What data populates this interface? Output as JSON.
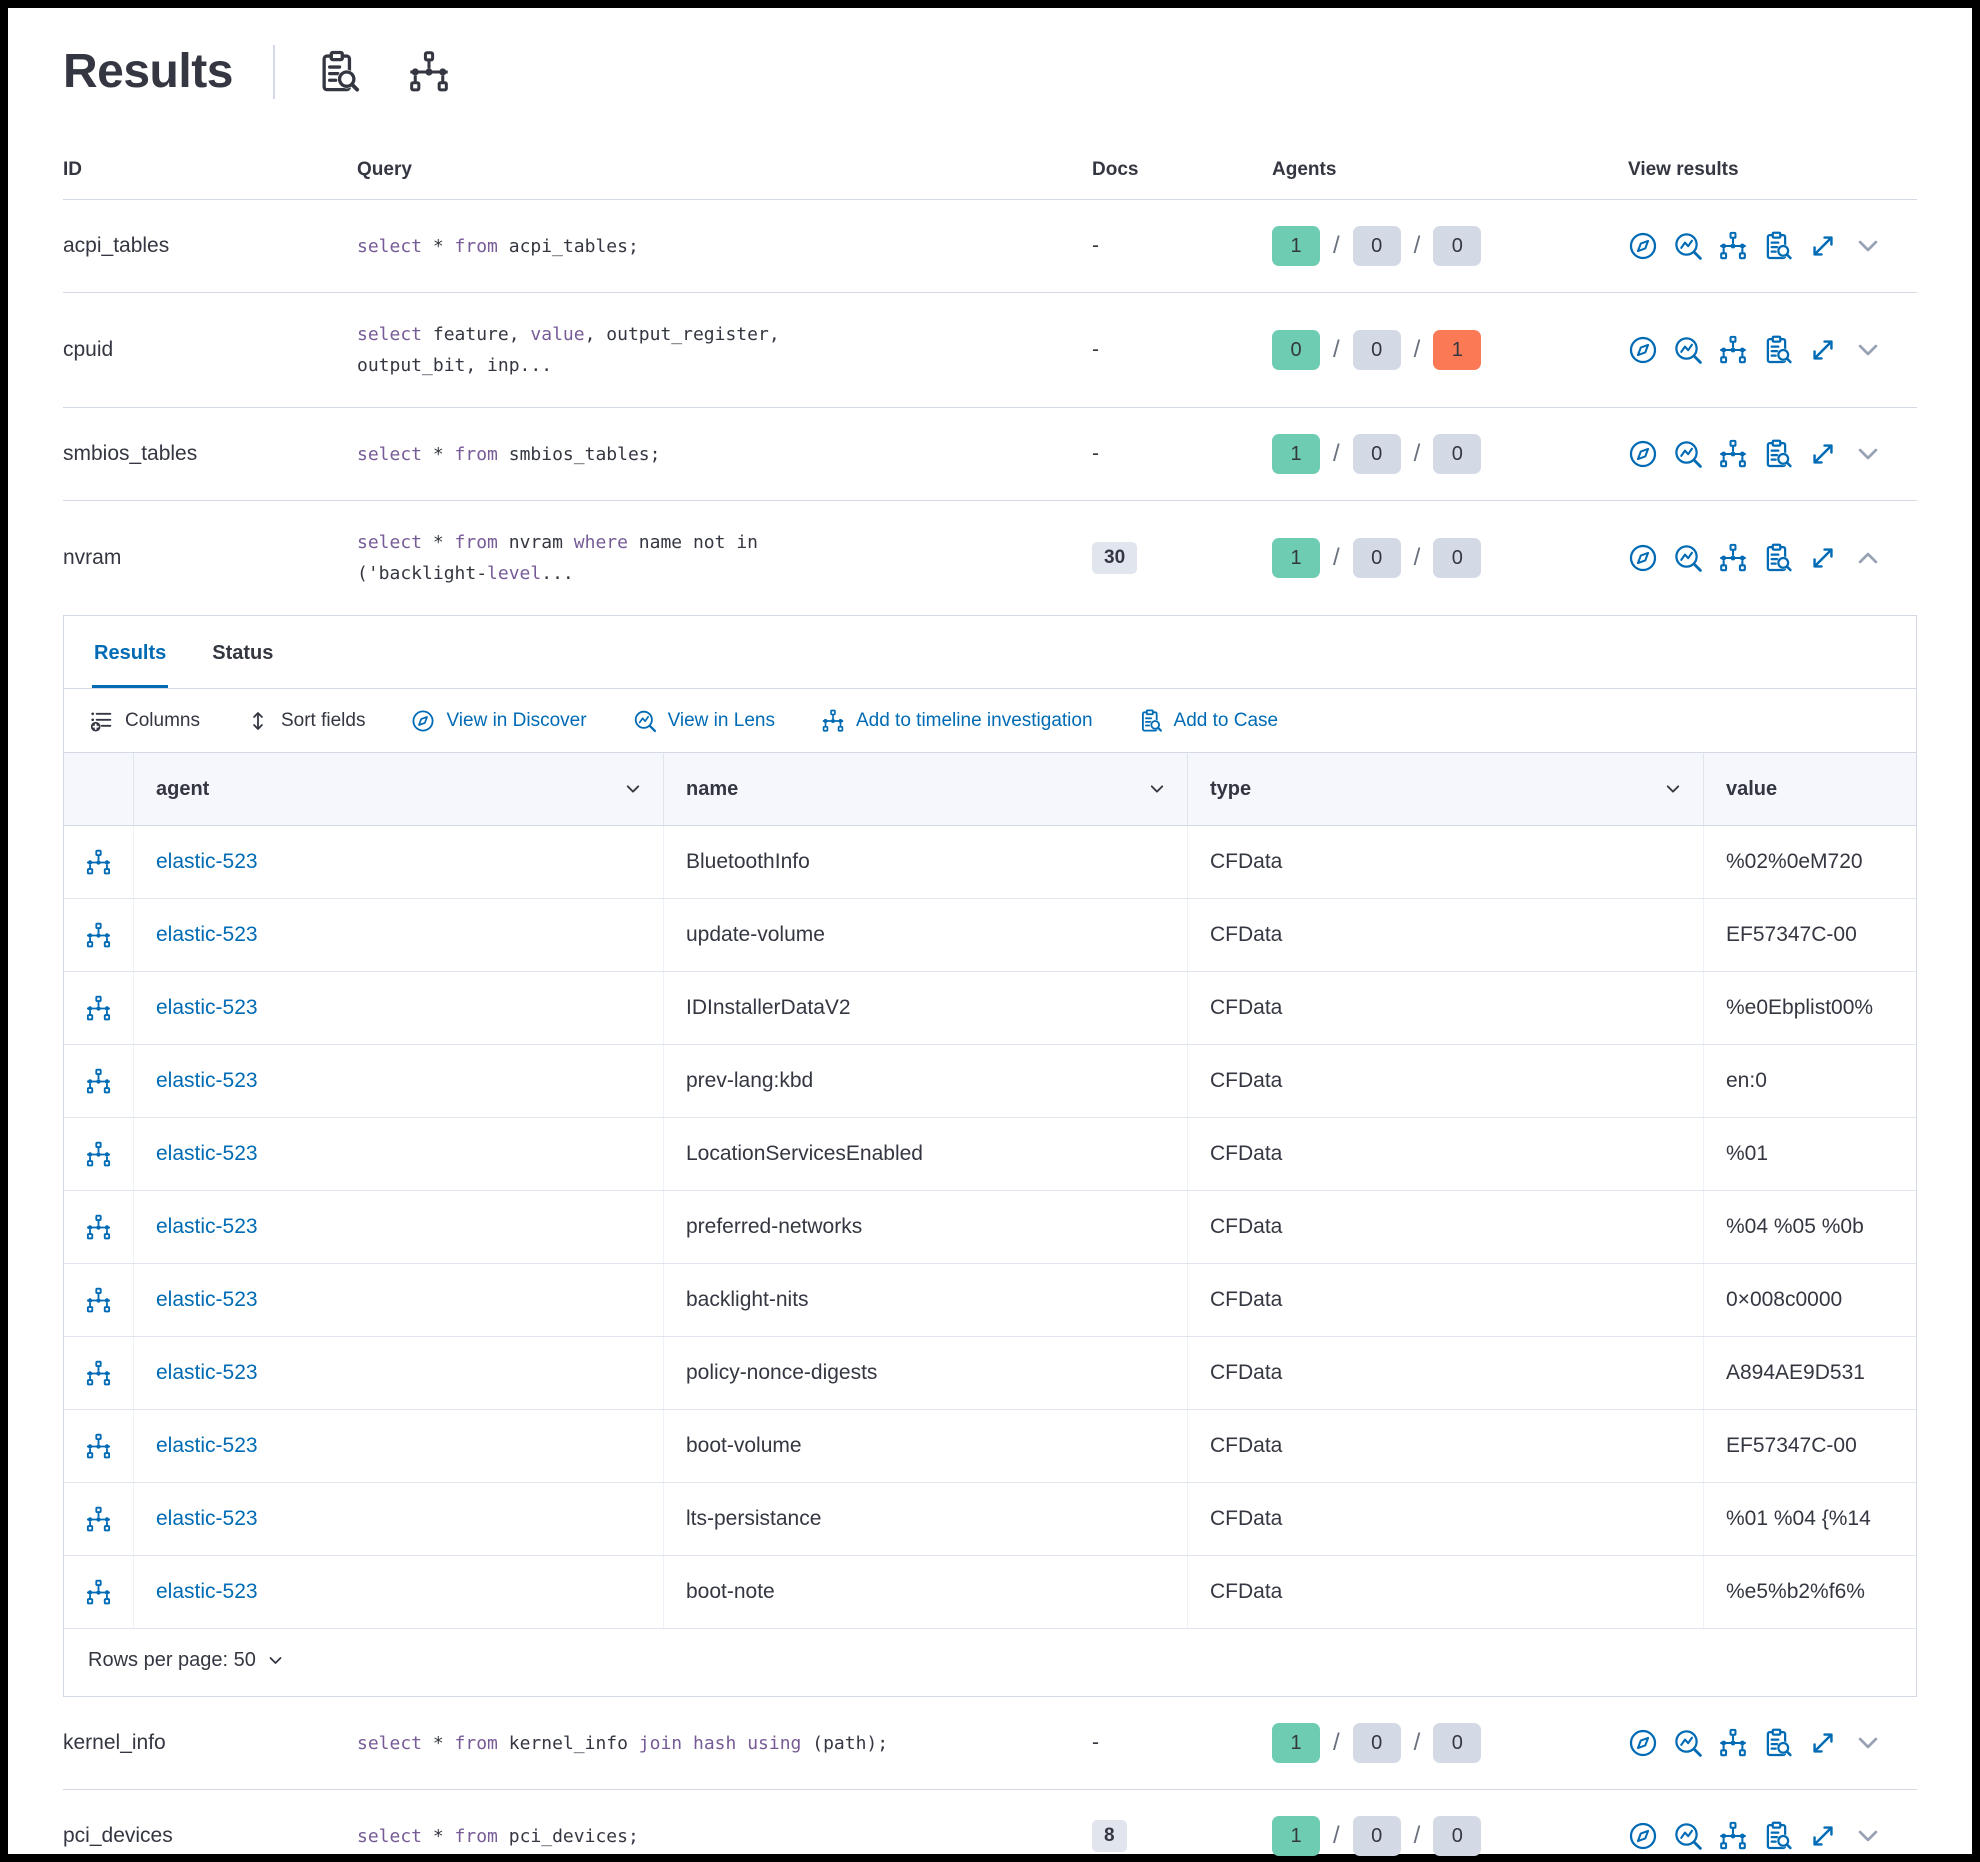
{
  "header": {
    "title": "Results"
  },
  "table": {
    "columns": {
      "id": "ID",
      "query": "Query",
      "docs": "Docs",
      "agents": "Agents",
      "view_results": "View results"
    },
    "rows": [
      {
        "id": "acpi_tables",
        "query": [
          [
            {
              "t": "select",
              "k": true
            },
            {
              "t": " * ",
              "k": false
            },
            {
              "t": "from",
              "k": true
            },
            {
              "t": " acpi_tables;",
              "k": false
            }
          ]
        ],
        "docs": "-",
        "docs_badge": false,
        "agents": {
          "ok": "1",
          "pending": "0",
          "failed": "0",
          "failed_alert": false
        },
        "expanded": false
      },
      {
        "id": "cpuid",
        "query": [
          [
            {
              "t": "select",
              "k": true
            },
            {
              "t": " feature, ",
              "k": false
            },
            {
              "t": "value",
              "k": true
            },
            {
              "t": ", output_register,",
              "k": false
            }
          ],
          [
            {
              "t": "output_bit, inp...",
              "k": false
            }
          ]
        ],
        "docs": "-",
        "docs_badge": false,
        "agents": {
          "ok": "0",
          "pending": "0",
          "failed": "1",
          "failed_alert": true
        },
        "expanded": false
      },
      {
        "id": "smbios_tables",
        "query": [
          [
            {
              "t": "select",
              "k": true
            },
            {
              "t": " * ",
              "k": false
            },
            {
              "t": "from",
              "k": true
            },
            {
              "t": " smbios_tables;",
              "k": false
            }
          ]
        ],
        "docs": "-",
        "docs_badge": false,
        "agents": {
          "ok": "1",
          "pending": "0",
          "failed": "0",
          "failed_alert": false
        },
        "expanded": false
      },
      {
        "id": "nvram",
        "query": [
          [
            {
              "t": "select",
              "k": true
            },
            {
              "t": " * ",
              "k": false
            },
            {
              "t": "from",
              "k": true
            },
            {
              "t": " nvram ",
              "k": false
            },
            {
              "t": "where",
              "k": true
            },
            {
              "t": " name not in",
              "k": false
            }
          ],
          [
            {
              "t": "('backlight-",
              "k": false
            },
            {
              "t": "level",
              "k": true
            },
            {
              "t": "...",
              "k": false
            }
          ]
        ],
        "docs": "30",
        "docs_badge": true,
        "agents": {
          "ok": "1",
          "pending": "0",
          "failed": "0",
          "failed_alert": false
        },
        "expanded": true
      },
      {
        "id": "kernel_info",
        "query": [
          [
            {
              "t": "select",
              "k": true
            },
            {
              "t": " * ",
              "k": false
            },
            {
              "t": "from",
              "k": true
            },
            {
              "t": " kernel_info ",
              "k": false
            },
            {
              "t": "join",
              "k": true
            },
            {
              "t": " ",
              "k": false
            },
            {
              "t": "hash",
              "k": true
            },
            {
              "t": " ",
              "k": false
            },
            {
              "t": "using",
              "k": true
            },
            {
              "t": " (path);",
              "k": false
            }
          ]
        ],
        "docs": "-",
        "docs_badge": false,
        "agents": {
          "ok": "1",
          "pending": "0",
          "failed": "0",
          "failed_alert": false
        },
        "expanded": false
      },
      {
        "id": "pci_devices",
        "query": [
          [
            {
              "t": "select",
              "k": true
            },
            {
              "t": " * ",
              "k": false
            },
            {
              "t": "from",
              "k": true
            },
            {
              "t": " pci_devices;",
              "k": false
            }
          ]
        ],
        "docs": "8",
        "docs_badge": true,
        "agents": {
          "ok": "1",
          "pending": "0",
          "failed": "0",
          "failed_alert": false
        },
        "expanded": false
      }
    ]
  },
  "results_panel": {
    "tabs": [
      {
        "label": "Results"
      },
      {
        "label": "Status"
      }
    ],
    "toolbar": {
      "columns": "Columns",
      "sort_fields": "Sort fields",
      "view_in_discover": "View in Discover",
      "view_in_lens": "View in Lens",
      "add_to_timeline": "Add to timeline investigation",
      "add_to_case": "Add to Case"
    },
    "grid": {
      "columns": [
        {
          "label": "agent"
        },
        {
          "label": "name"
        },
        {
          "label": "type"
        },
        {
          "label": "value"
        }
      ],
      "rows": [
        {
          "agent": "elastic-523",
          "name": "BluetoothInfo",
          "type": "CFData",
          "value": "%02%0eM720"
        },
        {
          "agent": "elastic-523",
          "name": "update-volume",
          "type": "CFData",
          "value": "EF57347C-00"
        },
        {
          "agent": "elastic-523",
          "name": "IDInstallerDataV2",
          "type": "CFData",
          "value": "%e0Ebplist00%"
        },
        {
          "agent": "elastic-523",
          "name": "prev-lang:kbd",
          "type": "CFData",
          "value": "en:0"
        },
        {
          "agent": "elastic-523",
          "name": "LocationServicesEnabled",
          "type": "CFData",
          "value": "%01"
        },
        {
          "agent": "elastic-523",
          "name": "preferred-networks",
          "type": "CFData",
          "value": "%04 %05 %0b"
        },
        {
          "agent": "elastic-523",
          "name": "backlight-nits",
          "type": "CFData",
          "value": "0×008c0000"
        },
        {
          "agent": "elastic-523",
          "name": "policy-nonce-digests",
          "type": "CFData",
          "value": "A894AE9D531"
        },
        {
          "agent": "elastic-523",
          "name": "boot-volume",
          "type": "CFData",
          "value": "EF57347C-00"
        },
        {
          "agent": "elastic-523",
          "name": "lts-persistance",
          "type": "CFData",
          "value": "%01 %04 {%14"
        },
        {
          "agent": "elastic-523",
          "name": "boot-note",
          "type": "CFData",
          "value": "%e5%b2%f6%"
        }
      ],
      "footer": {
        "rows_per_page": "Rows per page: 50"
      }
    }
  },
  "colors": {
    "ok_badge": "#6dccb1",
    "neutral_badge": "#d3dae6",
    "failed_badge": "#fb7a55",
    "link_blue": "#006bb4",
    "keyword_purple": "#765b96"
  }
}
